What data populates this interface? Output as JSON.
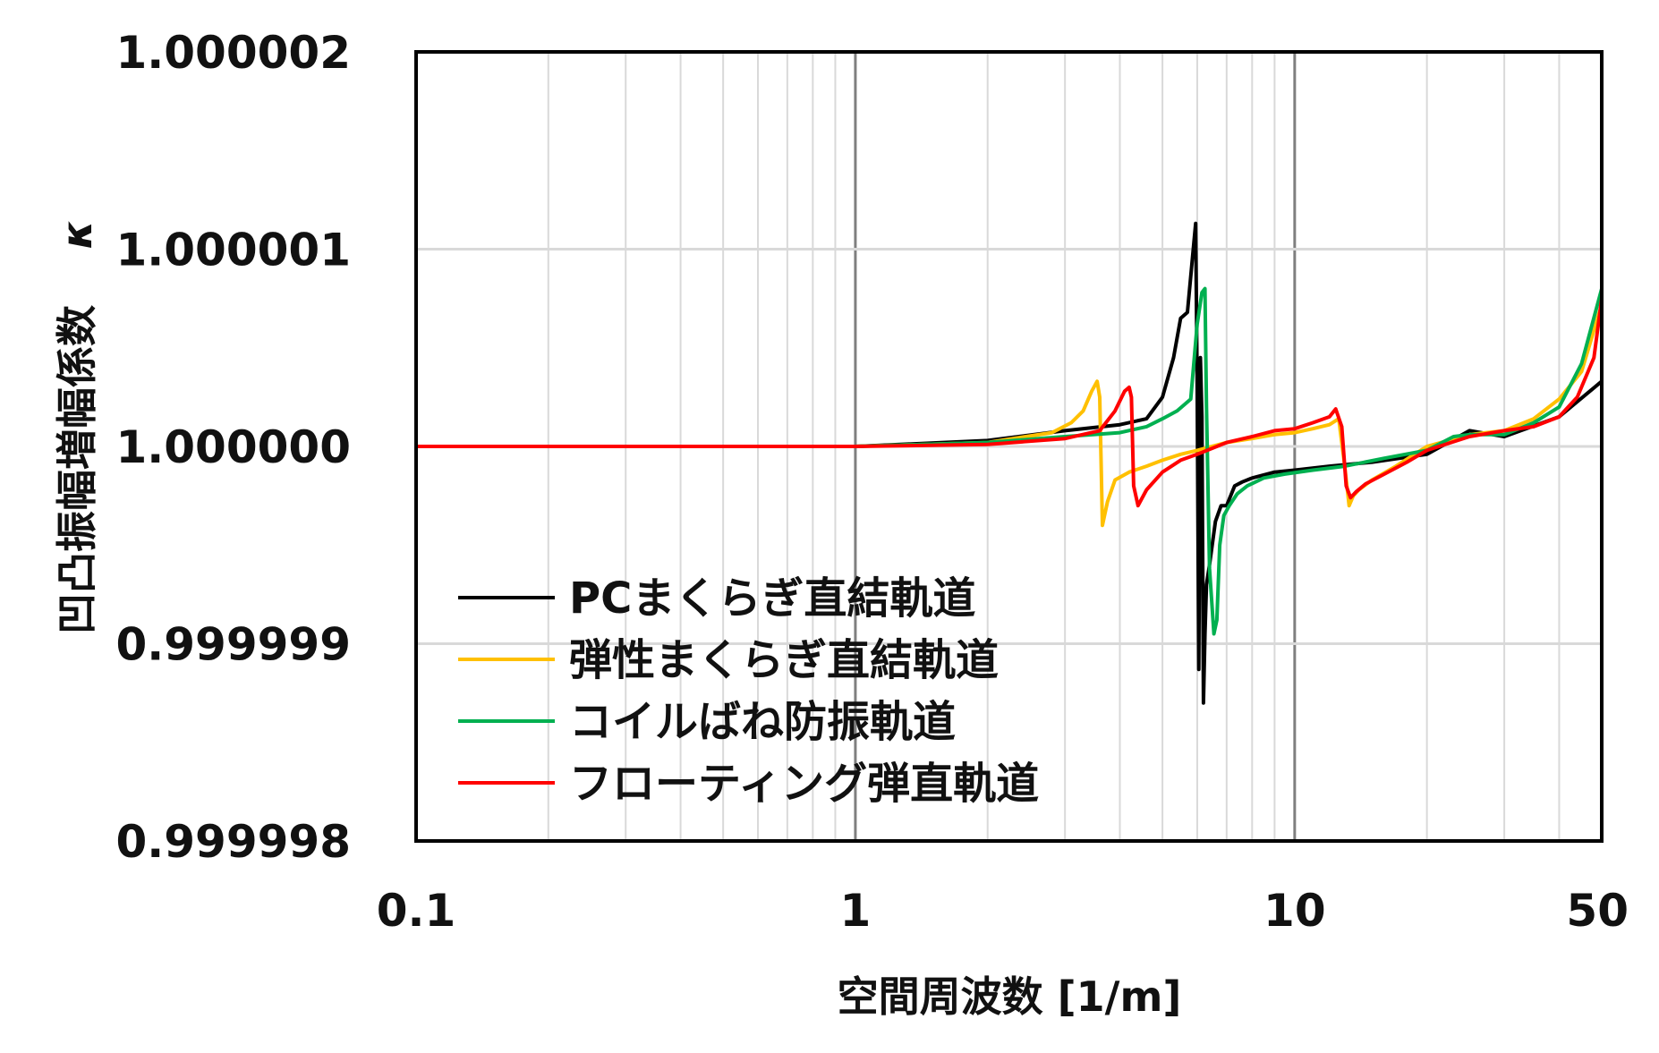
{
  "chart_data": {
    "type": "line",
    "xlabel": "空間周波数 [1/m]",
    "ylabel": "凹凸振幅増幅係数",
    "ylabel_symbol": "κ",
    "x_scale": "log",
    "xlim": [
      0.1,
      50
    ],
    "ylim": [
      0.999998,
      1.000002
    ],
    "x_ticks": [
      0.1,
      1,
      10,
      50
    ],
    "x_tick_labels": [
      "0.1",
      "1",
      "10",
      "50"
    ],
    "y_ticks": [
      0.999998,
      0.999999,
      1.0,
      1.000001,
      1.000002
    ],
    "y_tick_labels": [
      "0.999998",
      "0.999999",
      "1.000000",
      "1.000001",
      "1.000002"
    ],
    "grid": true,
    "legend_position": "bottom-left",
    "series": [
      {
        "name": "PCまくらぎ直結軌道",
        "color": "#000000",
        "x": [
          0.1,
          1,
          2,
          3,
          4,
          4.6,
          5.0,
          5.3,
          5.5,
          5.7,
          5.85,
          5.95,
          6.0,
          6.05,
          6.1,
          6.15,
          6.2,
          6.25,
          6.3,
          6.4,
          6.6,
          6.8,
          7.0,
          7.3,
          7.6,
          8,
          9,
          10,
          12,
          15,
          20,
          25,
          30,
          40,
          50
        ],
        "y": [
          1.0,
          1.0,
          1.00000003,
          1.00000008,
          1.00000011,
          1.00000014,
          1.00000025,
          1.00000045,
          1.00000065,
          1.00000068,
          1.00000095,
          1.00000113,
          1.0000003,
          0.99999887,
          1.00000045,
          1.00000015,
          0.9999987,
          0.99999905,
          0.9999993,
          0.9999994,
          0.99999962,
          0.9999997,
          0.9999997,
          0.9999998,
          0.99999982,
          0.99999984,
          0.99999987,
          0.99999988,
          0.9999999,
          0.99999992,
          0.99999996,
          1.00000008,
          1.00000005,
          1.00000015,
          1.00000033
        ]
      },
      {
        "name": "弾性まくらぎ直結軌道",
        "color": "#ffc000",
        "x": [
          0.1,
          1,
          2,
          2.8,
          3.1,
          3.3,
          3.45,
          3.55,
          3.6,
          3.65,
          3.75,
          3.9,
          4.2,
          4.6,
          5.0,
          5.5,
          6,
          7,
          8,
          9,
          10,
          11,
          12,
          12.6,
          13.0,
          13.3,
          13.6,
          14,
          15,
          17,
          20,
          25,
          30,
          35,
          40,
          45,
          50
        ],
        "y": [
          1.0,
          1.0,
          1.00000002,
          1.00000007,
          1.00000012,
          1.00000018,
          1.00000028,
          1.00000033,
          1.00000025,
          0.9999996,
          0.99999972,
          0.99999983,
          0.99999987,
          0.9999999,
          0.99999993,
          0.99999996,
          0.99999998,
          1.00000002,
          1.00000004,
          1.00000006,
          1.00000007,
          1.00000009,
          1.00000011,
          1.00000014,
          0.9999999,
          0.9999997,
          0.99999975,
          0.99999978,
          0.99999983,
          0.9999999,
          1.0,
          1.00000006,
          1.00000008,
          1.00000014,
          1.00000024,
          1.00000038,
          1.00000072
        ]
      },
      {
        "name": "コイルばね防振軌道",
        "color": "#00b050",
        "x": [
          0.1,
          1,
          2,
          3,
          4,
          4.6,
          5.0,
          5.4,
          5.8,
          6.0,
          6.15,
          6.25,
          6.3,
          6.4,
          6.55,
          6.65,
          6.75,
          6.9,
          7.1,
          7.4,
          7.8,
          8.5,
          9.5,
          11,
          13,
          16,
          20,
          23,
          25,
          30,
          35,
          40,
          45,
          50
        ],
        "y": [
          1.0,
          1.0,
          1.00000002,
          1.00000005,
          1.00000007,
          1.0000001,
          1.00000014,
          1.00000018,
          1.00000024,
          1.00000062,
          1.00000078,
          1.0000008,
          1.0000002,
          0.99999938,
          0.99999905,
          0.99999912,
          0.9999995,
          0.99999965,
          0.9999997,
          0.99999976,
          0.9999998,
          0.99999984,
          0.99999986,
          0.99999988,
          0.9999999,
          0.99999994,
          0.99999998,
          1.00000005,
          1.00000006,
          1.00000006,
          1.00000012,
          1.0000002,
          1.00000042,
          1.0000008
        ]
      },
      {
        "name": "フローティング弾直軌道",
        "color": "#ff0000",
        "x": [
          0.1,
          1,
          2,
          3,
          3.6,
          3.9,
          4.1,
          4.2,
          4.25,
          4.3,
          4.4,
          4.6,
          5.0,
          5.5,
          6,
          7,
          8,
          9,
          10,
          11,
          12,
          12.4,
          12.8,
          13.1,
          13.4,
          13.8,
          14.5,
          16,
          18,
          20,
          25,
          30,
          35,
          40,
          44,
          48,
          50
        ],
        "y": [
          1.0,
          1.0,
          1.00000001,
          1.00000004,
          1.00000008,
          1.00000018,
          1.00000028,
          1.0000003,
          1.00000025,
          0.9999998,
          0.9999997,
          0.99999978,
          0.99999987,
          0.99999993,
          0.99999996,
          1.00000002,
          1.00000005,
          1.00000008,
          1.00000009,
          1.00000012,
          1.00000015,
          1.00000019,
          1.0000001,
          0.9999998,
          0.99999974,
          0.99999977,
          0.99999981,
          0.99999986,
          0.99999992,
          0.99999998,
          1.00000005,
          1.00000008,
          1.0000001,
          1.00000015,
          1.00000025,
          1.00000045,
          1.00000075
        ]
      }
    ]
  }
}
